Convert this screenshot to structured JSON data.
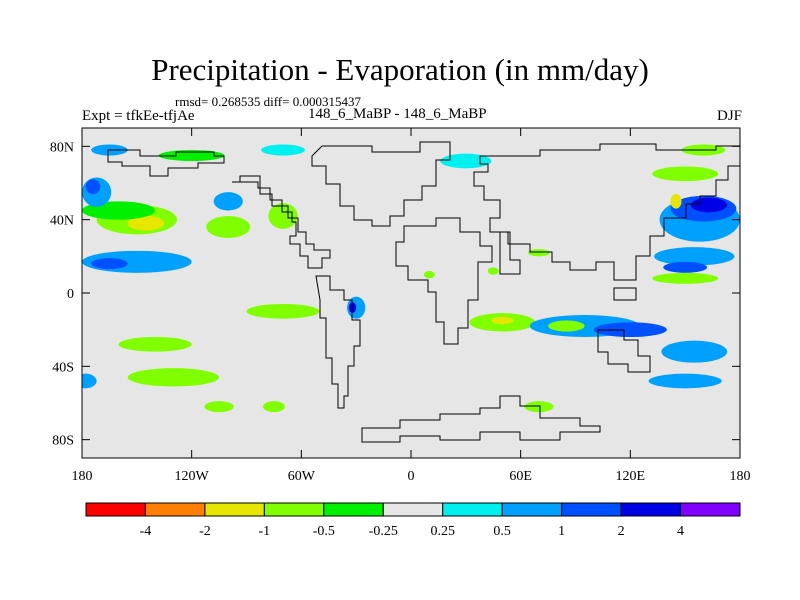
{
  "title": "Precipitation - Evaporation (in mm/day)",
  "stats": "rmsd= 0.268535 diff= 0.000315437",
  "expt": "Expt = tfkEe-tfjAe",
  "period": "148_6_MaBP - 148_6_MaBP",
  "season": "DJF",
  "chart_data": {
    "type": "heatmap",
    "title": "Precipitation - Evaporation (in mm/day)",
    "xlabel": "",
    "ylabel": "",
    "xlim": [
      -180,
      180
    ],
    "ylim": [
      -90,
      90
    ],
    "x_ticks": [
      {
        "value": -180,
        "label": "180"
      },
      {
        "value": -120,
        "label": "120W"
      },
      {
        "value": -60,
        "label": "60W"
      },
      {
        "value": 0,
        "label": "0"
      },
      {
        "value": 60,
        "label": "60E"
      },
      {
        "value": 120,
        "label": "120E"
      },
      {
        "value": 180,
        "label": "180"
      }
    ],
    "y_ticks": [
      {
        "value": 80,
        "label": "80N"
      },
      {
        "value": 40,
        "label": "40N"
      },
      {
        "value": 0,
        "label": "0"
      },
      {
        "value": -40,
        "label": "40S"
      },
      {
        "value": -80,
        "label": "80S"
      }
    ],
    "colorbar": {
      "colors": [
        "#ff0000",
        "#ff8000",
        "#e6e600",
        "#80ff00",
        "#00f000",
        "#e6e6e6",
        "#00f0f0",
        "#00a0ff",
        "#0050ff",
        "#0000e6",
        "#8000ff"
      ],
      "labels": [
        "-4",
        "-2",
        "-1",
        "-0.5",
        "-0.25",
        "0.25",
        "0.5",
        "1",
        "2",
        "4"
      ]
    },
    "background_color": "#e6e6e6",
    "regions": [
      {
        "level": "-0.5",
        "lon": -150,
        "lat": 40,
        "rlon": 22,
        "rlat": 8
      },
      {
        "level": "-1",
        "lon": -145,
        "lat": 38,
        "rlon": 10,
        "rlat": 4
      },
      {
        "level": "-0.25",
        "lon": -160,
        "lat": 45,
        "rlon": 20,
        "rlat": 5
      },
      {
        "level": "0.5",
        "lon": -172,
        "lat": 55,
        "rlon": 8,
        "rlat": 8
      },
      {
        "level": "1",
        "lon": -174,
        "lat": 58,
        "rlon": 4,
        "rlat": 4
      },
      {
        "level": "0.5",
        "lon": -150,
        "lat": 17,
        "rlon": 30,
        "rlat": 6
      },
      {
        "level": "1",
        "lon": -165,
        "lat": 16,
        "rlon": 10,
        "rlat": 3
      },
      {
        "level": "-0.5",
        "lon": -100,
        "lat": 36,
        "rlon": 12,
        "rlat": 6
      },
      {
        "level": "0.5",
        "lon": -100,
        "lat": 50,
        "rlon": 8,
        "rlat": 5
      },
      {
        "level": "-0.5",
        "lon": -70,
        "lat": 42,
        "rlon": 8,
        "rlat": 7
      },
      {
        "level": "-0.25",
        "lon": -120,
        "lat": 75,
        "rlon": 18,
        "rlat": 3
      },
      {
        "level": "0.5",
        "lon": -165,
        "lat": 78,
        "rlon": 10,
        "rlat": 3
      },
      {
        "level": "0.25",
        "lon": -70,
        "lat": 78,
        "rlon": 12,
        "rlat": 3
      },
      {
        "level": "-0.5",
        "lon": -140,
        "lat": -28,
        "rlon": 20,
        "rlat": 4
      },
      {
        "level": "-0.5",
        "lon": -130,
        "lat": -46,
        "rlon": 25,
        "rlat": 5
      },
      {
        "level": "0.5",
        "lon": -178,
        "lat": -48,
        "rlon": 6,
        "rlat": 4
      },
      {
        "level": "-0.5",
        "lon": -105,
        "lat": -62,
        "rlon": 8,
        "rlat": 3
      },
      {
        "level": "-0.5",
        "lon": -75,
        "lat": -62,
        "rlon": 6,
        "rlat": 3
      },
      {
        "level": "-0.5",
        "lon": -70,
        "lat": -10,
        "rlon": 20,
        "rlat": 4
      },
      {
        "level": "0.5",
        "lon": -30,
        "lat": -8,
        "rlon": 5,
        "rlat": 6
      },
      {
        "level": "2",
        "lon": -32,
        "lat": -8,
        "rlon": 2,
        "rlat": 3
      },
      {
        "level": "-0.5",
        "lon": 10,
        "lat": 10,
        "rlon": 3,
        "rlat": 2
      },
      {
        "level": "-0.5",
        "lon": 45,
        "lat": 12,
        "rlon": 3,
        "rlat": 2
      },
      {
        "level": "-0.5",
        "lon": 70,
        "lat": 22,
        "rlon": 6,
        "rlat": 2
      },
      {
        "level": "-0.5",
        "lon": 50,
        "lat": -16,
        "rlon": 18,
        "rlat": 5
      },
      {
        "level": "-1",
        "lon": 50,
        "lat": -15,
        "rlon": 6,
        "rlat": 2
      },
      {
        "level": "0.5",
        "lon": 95,
        "lat": -18,
        "rlon": 30,
        "rlat": 6
      },
      {
        "level": "1",
        "lon": 120,
        "lat": -20,
        "rlon": 20,
        "rlat": 4
      },
      {
        "level": "0.5",
        "lon": 155,
        "lat": -32,
        "rlon": 18,
        "rlat": 6
      },
      {
        "level": "0.5",
        "lon": 150,
        "lat": -48,
        "rlon": 20,
        "rlat": 4
      },
      {
        "level": "-0.5",
        "lon": 85,
        "lat": -18,
        "rlon": 10,
        "rlat": 3
      },
      {
        "level": "-0.5",
        "lon": 70,
        "lat": -62,
        "rlon": 8,
        "rlat": 3
      },
      {
        "level": "0.5",
        "lon": 158,
        "lat": 40,
        "rlon": 22,
        "rlat": 12
      },
      {
        "level": "1",
        "lon": 160,
        "lat": 46,
        "rlon": 18,
        "rlat": 7
      },
      {
        "level": "2",
        "lon": 163,
        "lat": 48,
        "rlon": 10,
        "rlat": 4
      },
      {
        "level": "0.5",
        "lon": 155,
        "lat": 20,
        "rlon": 22,
        "rlat": 5
      },
      {
        "level": "1",
        "lon": 150,
        "lat": 14,
        "rlon": 12,
        "rlat": 3
      },
      {
        "level": "-0.5",
        "lon": 150,
        "lat": 65,
        "rlon": 18,
        "rlat": 4
      },
      {
        "level": "-1",
        "lon": 145,
        "lat": 50,
        "rlon": 3,
        "rlat": 4
      },
      {
        "level": "-0.5",
        "lon": 150,
        "lat": 8,
        "rlon": 18,
        "rlat": 3
      },
      {
        "level": "0.25",
        "lon": 30,
        "lat": 72,
        "rlon": 14,
        "rlat": 4
      },
      {
        "level": "-0.5",
        "lon": 160,
        "lat": 78,
        "rlon": 12,
        "rlat": 3
      }
    ]
  }
}
